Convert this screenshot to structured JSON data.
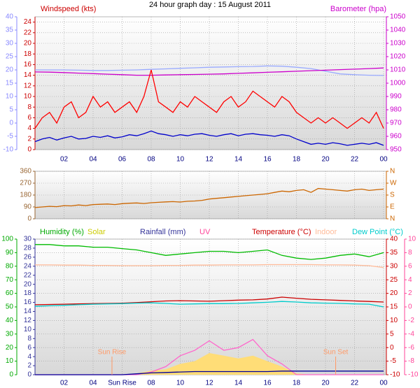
{
  "title": "24 hour graph day : 15 August 2011",
  "chart_data": [
    {
      "type": "line",
      "xlim": [
        0,
        24
      ],
      "grid": true,
      "xticks": [
        {
          "value": 2,
          "label": "02"
        },
        {
          "value": 4,
          "label": "04"
        },
        {
          "value": 6,
          "label": "06"
        },
        {
          "value": 8,
          "label": "08"
        },
        10,
        12,
        14,
        16,
        18,
        20,
        22,
        {
          "value": 24,
          "label": "00"
        }
      ],
      "axes": [
        {
          "title": "Windspeed (kts)",
          "color": "#cc0000",
          "side": "left-inner",
          "lim": [
            0,
            25
          ],
          "ticks": [
            0,
            2,
            4,
            6,
            8,
            10,
            12,
            14,
            16,
            18,
            20,
            22,
            24
          ]
        },
        {
          "color": "#8888ff",
          "side": "left-outer",
          "lim": [
            -10,
            40
          ],
          "ticks": [
            -10,
            -5,
            0,
            5,
            10,
            15,
            20,
            25,
            30,
            35,
            40
          ]
        },
        {
          "title": "Barometer (hpa)",
          "color": "#cc00cc",
          "side": "right-inner",
          "lim": [
            950,
            1050
          ],
          "ticks": [
            950,
            960,
            970,
            980,
            990,
            1000,
            1010,
            1020,
            1030,
            1040,
            1050
          ]
        }
      ],
      "series": [
        {
          "axis": 1,
          "color": "#99aaff",
          "x": [
            0,
            1,
            2,
            3,
            4,
            5,
            6,
            7,
            8,
            9,
            10,
            11,
            12,
            13,
            14,
            15,
            16,
            17,
            18,
            19,
            20,
            21,
            22,
            23,
            24
          ],
          "values": [
            20,
            20,
            20,
            19.9,
            19.8,
            19.8,
            19.9,
            20,
            20.2,
            20.4,
            20.6,
            20.8,
            21,
            21.1,
            21.2,
            21.3,
            21.5,
            21.4,
            21,
            20.5,
            19.5,
            18.5,
            18.2,
            18,
            17.9
          ]
        },
        {
          "axis": 2,
          "color": "#cc00cc",
          "x": [
            0,
            1,
            2,
            3,
            4,
            5,
            6,
            7,
            8,
            9,
            10,
            11,
            12,
            13,
            14,
            15,
            16,
            17,
            18,
            19,
            20,
            21,
            22,
            23,
            24
          ],
          "values": [
            1008.5,
            1008.3,
            1008,
            1007.6,
            1007.2,
            1006.8,
            1006.4,
            1006,
            1006,
            1006.2,
            1006.4,
            1006.6,
            1006.8,
            1007,
            1007.4,
            1007.8,
            1008.2,
            1008.6,
            1009,
            1009.4,
            1009.8,
            1010.2,
            1010.6,
            1011,
            1011.5
          ]
        },
        {
          "axis": 0,
          "color": "#ff0000",
          "x": [
            0,
            0.5,
            1,
            1.5,
            2,
            2.5,
            3,
            3.5,
            4,
            4.5,
            5,
            5.5,
            6,
            6.5,
            7,
            7.5,
            8,
            8.5,
            9,
            9.5,
            10,
            10.5,
            11,
            11.5,
            12,
            12.5,
            13,
            13.5,
            14,
            14.5,
            15,
            15.5,
            16,
            16.5,
            17,
            17.5,
            18,
            18.5,
            19,
            19.5,
            20,
            20.5,
            21,
            21.5,
            22,
            22.5,
            23,
            23.5,
            24
          ],
          "values": [
            4,
            6,
            7,
            5,
            8,
            9,
            6,
            7,
            10,
            8,
            9,
            7,
            8,
            9,
            7,
            10,
            15,
            9,
            8,
            7,
            9,
            8,
            10,
            9,
            8,
            7,
            9,
            10,
            8,
            9,
            11,
            10,
            9,
            8,
            10,
            9,
            7,
            6,
            5,
            6,
            5,
            6,
            5,
            4,
            5,
            6,
            5,
            7,
            4
          ]
        },
        {
          "axis": 0,
          "color": "#0000cc",
          "x": [
            0,
            0.5,
            1,
            1.5,
            2,
            2.5,
            3,
            3.5,
            4,
            4.5,
            5,
            5.5,
            6,
            6.5,
            7,
            7.5,
            8,
            8.5,
            9,
            9.5,
            10,
            10.5,
            11,
            11.5,
            12,
            12.5,
            13,
            13.5,
            14,
            14.5,
            15,
            15.5,
            16,
            16.5,
            17,
            17.5,
            18,
            18.5,
            19,
            19.5,
            20,
            20.5,
            21,
            21.5,
            22,
            22.5,
            23,
            23.5,
            24
          ],
          "values": [
            1.5,
            2,
            2.3,
            1.8,
            2.2,
            2.5,
            2,
            2.1,
            2.5,
            2.3,
            2.6,
            2.2,
            2.4,
            2.8,
            2.6,
            3,
            3.5,
            3,
            2.8,
            2.5,
            2.8,
            2.6,
            2.9,
            3,
            2.7,
            2.5,
            2.8,
            3,
            2.6,
            2.9,
            3,
            2.8,
            2.7,
            2.5,
            2.8,
            2.6,
            2,
            1.5,
            1,
            1.2,
            1,
            1.3,
            1.1,
            0.8,
            1,
            1.2,
            1,
            1.3,
            0.8
          ]
        }
      ]
    },
    {
      "type": "line",
      "xlim": [
        0,
        24
      ],
      "grid": true,
      "xticks": [
        2,
        4,
        6,
        8,
        10,
        12,
        14,
        16,
        18,
        20,
        22,
        24
      ],
      "axes": [
        {
          "color": "#996633",
          "side": "left-inner",
          "lim": [
            0,
            360
          ],
          "ticks": [
            0,
            90,
            180,
            270,
            360
          ]
        },
        {
          "color": "#cc6600",
          "side": "right-inner",
          "lim": [
            0,
            360
          ],
          "ticks": [
            {
              "value": 0,
              "label": "N"
            },
            {
              "value": 90,
              "label": "E"
            },
            {
              "value": 180,
              "label": "S"
            },
            {
              "value": 270,
              "label": "W"
            },
            {
              "value": 360,
              "label": "N"
            }
          ]
        }
      ],
      "series": [
        {
          "axis": 0,
          "color": "#cc6600",
          "x": [
            0,
            0.5,
            1,
            1.5,
            2,
            2.5,
            3,
            3.5,
            4,
            4.5,
            5,
            5.5,
            6,
            6.5,
            7,
            7.5,
            8,
            8.5,
            9,
            9.5,
            10,
            10.5,
            11,
            11.5,
            12,
            12.5,
            13,
            13.5,
            14,
            14.5,
            15,
            15.5,
            16,
            16.5,
            17,
            17.5,
            18,
            18.5,
            19,
            19.5,
            20,
            20.5,
            21,
            21.5,
            22,
            22.5,
            23,
            23.5,
            24
          ],
          "values": [
            85,
            90,
            95,
            92,
            100,
            98,
            105,
            100,
            108,
            110,
            112,
            108,
            115,
            118,
            120,
            116,
            122,
            125,
            128,
            130,
            127,
            133,
            135,
            140,
            150,
            155,
            160,
            165,
            170,
            175,
            180,
            185,
            190,
            200,
            210,
            205,
            215,
            220,
            200,
            230,
            225,
            220,
            215,
            210,
            220,
            225,
            215,
            220,
            225
          ]
        }
      ]
    },
    {
      "type": "line",
      "xlim": [
        0,
        24
      ],
      "grid": true,
      "xticks": [
        {
          "value": 2,
          "label": "02"
        },
        {
          "value": 4,
          "label": "04"
        },
        {
          "value": 6,
          "label": "Sun Rise"
        },
        {
          "value": 8,
          "label": "08"
        },
        10,
        12,
        14,
        16,
        18,
        20,
        22,
        {
          "value": 24,
          "label": "00"
        }
      ],
      "axes": [
        {
          "title": "Humidity (%)",
          "color": "#00aa00",
          "side": "left-outer",
          "lim": [
            0,
            100
          ],
          "ticks": [
            0,
            10,
            20,
            30,
            40,
            50,
            60,
            70,
            80,
            90,
            100
          ]
        },
        {
          "title": "Rainfall (mm)",
          "color": "#333399",
          "side": "left-inner",
          "lim": [
            0,
            30
          ],
          "ticks": [
            0,
            2,
            4,
            6,
            8,
            10,
            12,
            14,
            16,
            18,
            20,
            22,
            24,
            26,
            28,
            30
          ]
        },
        {
          "title": "Temperature (°C)",
          "color": "#cc0000",
          "side": "right-inner",
          "lim": [
            -10,
            40
          ],
          "ticks": [
            -10,
            -5,
            0,
            5,
            10,
            15,
            20,
            25,
            30,
            35,
            40
          ]
        },
        {
          "title": "UV",
          "color": "#ff4499",
          "side": "right-outer",
          "lim": [
            -10,
            10
          ],
          "ticks": [
            -10,
            -8,
            -6,
            -4,
            -2,
            0,
            2,
            4,
            6,
            8,
            10
          ]
        }
      ],
      "series": [
        {
          "name": "Solar",
          "draw": "area",
          "axis": 0,
          "color": "#ffdd77",
          "x": [
            0,
            1,
            2,
            3,
            4,
            5,
            6,
            7,
            8,
            9,
            10,
            11,
            12,
            13,
            14,
            15,
            16,
            17,
            18,
            19,
            20,
            21,
            22,
            23,
            24
          ],
          "values": [
            0,
            0,
            0,
            0,
            0,
            0,
            0,
            1,
            3,
            4,
            8,
            10,
            16,
            14,
            12,
            14,
            10,
            6,
            1,
            0,
            0,
            0,
            0,
            0,
            0
          ]
        },
        {
          "axis": 0,
          "color": "#ff66cc",
          "x": [
            0,
            1,
            2,
            3,
            4,
            5,
            6,
            7,
            8,
            9,
            10,
            11,
            12,
            13,
            14,
            15,
            16,
            17,
            18,
            19,
            20,
            21,
            22,
            23,
            24
          ],
          "values": [
            0,
            0,
            0,
            0,
            0,
            0,
            0,
            0,
            2,
            6,
            14,
            18,
            25,
            18,
            20,
            26,
            14,
            8,
            0,
            0,
            0,
            0,
            0,
            0,
            0
          ]
        },
        {
          "axis": 0,
          "color": "#00bb00",
          "x": [
            0,
            1,
            2,
            3,
            4,
            5,
            6,
            7,
            8,
            9,
            10,
            11,
            12,
            13,
            14,
            15,
            16,
            17,
            18,
            19,
            20,
            21,
            22,
            23,
            24
          ],
          "values": [
            96,
            96,
            95,
            95,
            94,
            94,
            93,
            92,
            90,
            88,
            89,
            90,
            91,
            91,
            90,
            91,
            92,
            88,
            86,
            85,
            86,
            88,
            89,
            87,
            90
          ]
        },
        {
          "name": "Indoor",
          "axis": 2,
          "color": "#ffbb99",
          "x": [
            0,
            1,
            2,
            3,
            4,
            5,
            6,
            7,
            8,
            9,
            10,
            11,
            12,
            13,
            14,
            15,
            16,
            17,
            18,
            19,
            20,
            21,
            22,
            23,
            24
          ],
          "values": [
            30.5,
            30.5,
            30.4,
            30.4,
            30.3,
            30.3,
            30.2,
            30.2,
            30.2,
            30.3,
            30.3,
            30.4,
            30.4,
            30.5,
            30.5,
            30.5,
            30.6,
            30.6,
            30.6,
            30.6,
            30.5,
            30.5,
            30.4,
            30.2,
            29.5
          ]
        },
        {
          "axis": 2,
          "color": "#cc0000",
          "x": [
            0,
            1,
            2,
            3,
            4,
            5,
            6,
            7,
            8,
            9,
            10,
            11,
            12,
            13,
            14,
            15,
            16,
            17,
            18,
            19,
            20,
            21,
            22,
            23,
            24
          ],
          "values": [
            15.8,
            15.9,
            16,
            16.1,
            16.2,
            16.3,
            16.4,
            16.6,
            16.9,
            17.2,
            17.3,
            17.2,
            17.1,
            17.3,
            17.5,
            17.6,
            17.9,
            18.6,
            18.2,
            17.8,
            17.6,
            17.4,
            17.2,
            17,
            16.8
          ]
        },
        {
          "name": "Dew Point (°C)",
          "axis": 2,
          "color": "#00cccc",
          "x": [
            0,
            1,
            2,
            3,
            4,
            5,
            6,
            7,
            8,
            9,
            10,
            11,
            12,
            13,
            14,
            15,
            16,
            17,
            18,
            19,
            20,
            21,
            22,
            23,
            24
          ],
          "values": [
            15.2,
            15.4,
            15.6,
            15.8,
            16,
            16.1,
            16.2,
            16.4,
            16.5,
            16.3,
            16,
            16.1,
            16.2,
            16.2,
            16.3,
            16.5,
            16.7,
            17,
            16.8,
            16.5,
            16.4,
            16.3,
            16.1,
            16,
            15
          ]
        },
        {
          "axis": 1,
          "color": "#000099",
          "x": [
            0,
            1,
            2,
            3,
            4,
            5,
            6,
            7,
            8,
            9,
            10,
            11,
            12,
            13,
            14,
            15,
            16,
            17,
            18,
            19,
            20,
            21,
            22,
            23,
            24
          ],
          "values": [
            0,
            0,
            0,
            0,
            0,
            0,
            0,
            0.2,
            0.4,
            0.5,
            0.6,
            0.7,
            0.7,
            0.7,
            0.7,
            0.7,
            0.7,
            0.8,
            0.8,
            0.8,
            0.8,
            0.8,
            0.8,
            0.8,
            0.8
          ]
        }
      ],
      "annotations": [
        {
          "text": "Sun Rise",
          "x": 5.3
        },
        {
          "text": "Sun Set",
          "x": 20.7
        }
      ]
    }
  ]
}
